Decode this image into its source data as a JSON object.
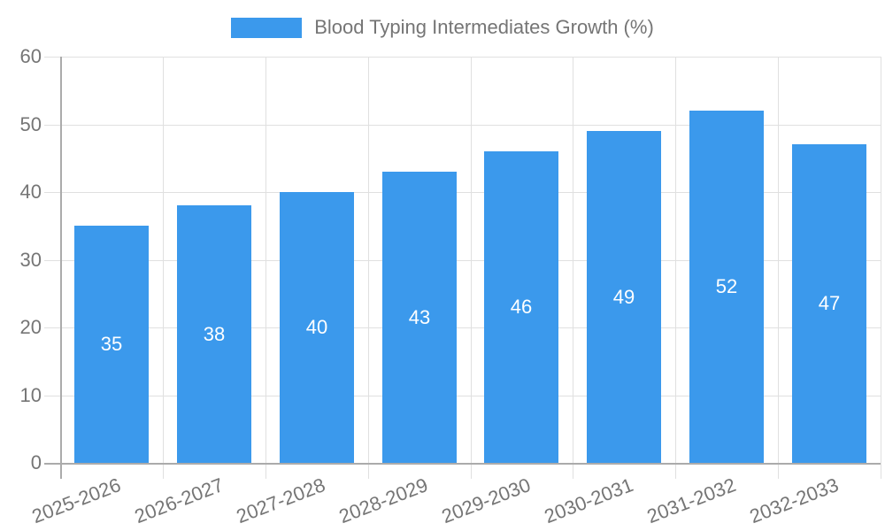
{
  "legend": {
    "label": "Blood Typing Intermediates Growth (%)"
  },
  "chart_data": {
    "type": "bar",
    "title": "Blood Typing Intermediates Growth (%)",
    "categories": [
      "2025-2026",
      "2026-2027",
      "2027-2028",
      "2028-2029",
      "2029-2030",
      "2030-2031",
      "2031-2032",
      "2032-2033"
    ],
    "values": [
      35,
      38,
      40,
      43,
      46,
      49,
      52,
      47
    ],
    "xlabel": "",
    "ylabel": "",
    "ylim": [
      0,
      60
    ],
    "yticks": [
      0,
      10,
      20,
      30,
      40,
      50,
      60
    ],
    "grid": true,
    "legend_position": "top",
    "bar_value_labels_shown": true,
    "colors": {
      "bar": "#3B99EC",
      "bar_value_label": "#FFFFFF",
      "axis_text": "#757575",
      "grid_line": "#E0E0E0",
      "axis_line": "#ABABAB"
    }
  }
}
